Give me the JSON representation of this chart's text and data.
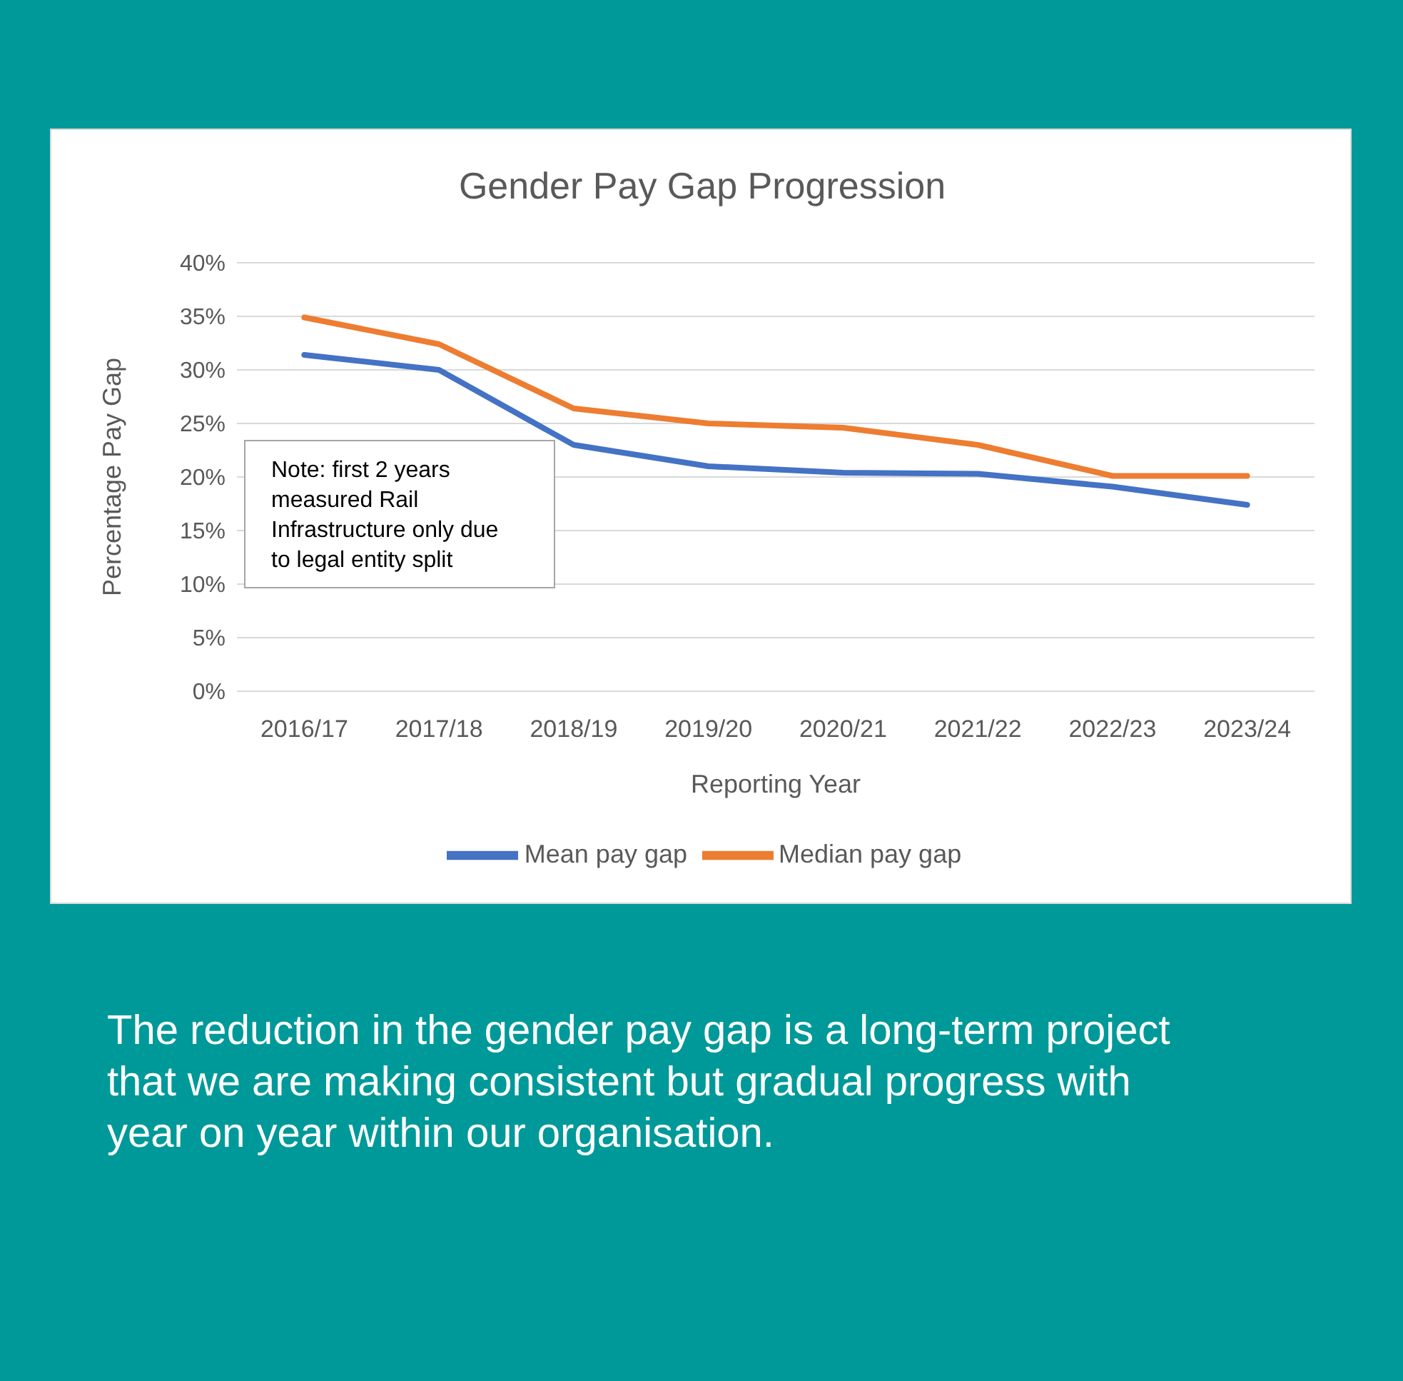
{
  "chart_data": {
    "type": "line",
    "title": "Gender Pay Gap Progression",
    "xlabel": "Reporting Year",
    "ylabel": "Percentage Pay Gap",
    "categories": [
      "2016/17",
      "2017/18",
      "2018/19",
      "2019/20",
      "2020/21",
      "2021/22",
      "2022/23",
      "2023/24"
    ],
    "series": [
      {
        "name": "Mean pay gap",
        "color": "#4472c4",
        "values": [
          31.4,
          30,
          23,
          21,
          20.4,
          20.3,
          19.1,
          17.4
        ]
      },
      {
        "name": "Median pay gap",
        "color": "#ed7d31",
        "values": [
          34.9,
          32.4,
          26.4,
          25,
          24.6,
          23,
          20.1,
          20.1
        ]
      }
    ],
    "ylim": [
      0,
      40
    ],
    "yticks": [
      {
        "value": 0,
        "label": "0%"
      },
      {
        "value": 5,
        "label": "5%"
      },
      {
        "value": 10,
        "label": "10%"
      },
      {
        "value": 15,
        "label": "15%"
      },
      {
        "value": 20,
        "label": "20%"
      },
      {
        "value": 25,
        "label": "25%"
      },
      {
        "value": 30,
        "label": "30%"
      },
      {
        "value": 35,
        "label": "35%"
      },
      {
        "value": 40,
        "label": "40%"
      }
    ],
    "grid": "y",
    "legend": "bottom",
    "marker": "none",
    "line_style": "solid",
    "annotations": [
      "Note: first 2 years measured Rail Infrastructure only due to legal entity split",
      "The reduction in the gender pay gap is a long-term project that we are making consistent but gradual progress with year on year within our organisation."
    ]
  }
}
